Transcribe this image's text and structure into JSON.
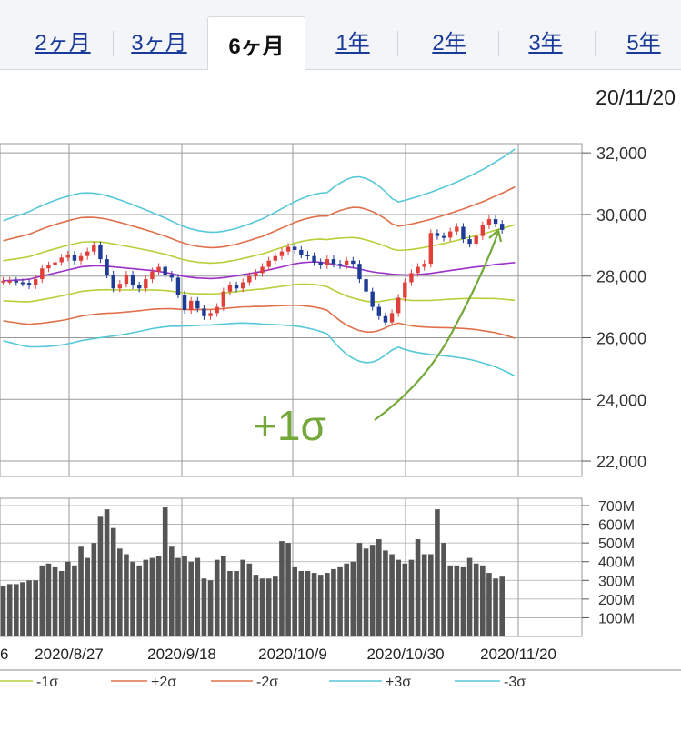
{
  "tabs": [
    {
      "label": "2ヶ月",
      "active": false
    },
    {
      "label": "3ヶ月",
      "active": false
    },
    {
      "label": "6ヶ月",
      "active": true
    },
    {
      "label": "1年",
      "active": false
    },
    {
      "label": "2年",
      "active": false
    },
    {
      "label": "3年",
      "active": false
    },
    {
      "label": "5年",
      "active": false
    }
  ],
  "date": "20/11/20",
  "annotation": "+1σ",
  "chart_data": {
    "type": "candlestick",
    "y_ticks": [
      "32,000",
      "30,000",
      "28,000",
      "26,000",
      "24,000",
      "22,000"
    ],
    "y_range": [
      21500,
      32300
    ],
    "x_ticks": [
      "6",
      "2020/8/27",
      "2020/9/18",
      "2020/10/9",
      "2020/10/30",
      "2020/11/20"
    ],
    "volume_ticks": [
      "700M",
      "600M",
      "500M",
      "400M",
      "300M",
      "200M",
      "100M"
    ],
    "volume_range": [
      0,
      700
    ],
    "legend": [
      "-1σ",
      "+2σ",
      "-2σ",
      "+3σ",
      "-3σ"
    ],
    "colors": {
      "up": "#e0403a",
      "down": "#1e3c96",
      "ma": "#9b30c8",
      "sigma1": "#b7cf3a",
      "sigma2": "#e0704a",
      "sigma3": "#56c8d8",
      "grid": "#999999",
      "volume": "#555555",
      "annotation": "#74a83a"
    },
    "close": [
      27850,
      27850,
      27800,
      27780,
      27700,
      27900,
      28250,
      28350,
      28450,
      28600,
      28700,
      28500,
      28650,
      28800,
      29000,
      28550,
      28050,
      27600,
      27750,
      28050,
      27700,
      27600,
      27900,
      28150,
      28300,
      28050,
      27950,
      27400,
      26900,
      27200,
      26950,
      26700,
      26800,
      27000,
      27500,
      27700,
      27600,
      27800,
      28000,
      28100,
      28300,
      28500,
      28650,
      28800,
      28950,
      28850,
      28700,
      28650,
      28450,
      28350,
      28550,
      28400,
      28350,
      28500,
      28400,
      27900,
      27500,
      27000,
      26700,
      26500,
      26800,
      27300,
      27800,
      28100,
      28300,
      28400,
      29400,
      29300,
      29250,
      29450,
      29600,
      29200,
      29050,
      29300,
      29650,
      29850,
      29700,
      29500,
      29350,
      29300
    ],
    "volume": [
      270,
      280,
      280,
      290,
      300,
      300,
      380,
      390,
      370,
      350,
      400,
      380,
      480,
      420,
      500,
      640,
      680,
      580,
      470,
      440,
      400,
      380,
      410,
      420,
      430,
      690,
      480,
      420,
      430,
      400,
      420,
      310,
      300,
      410,
      430,
      350,
      350,
      410,
      390,
      330,
      310,
      310,
      320,
      510,
      500,
      370,
      350,
      350,
      340,
      330,
      340,
      360,
      370,
      390,
      400,
      500,
      470,
      490,
      520,
      460,
      440,
      410,
      390,
      410,
      520,
      440,
      440,
      680,
      500,
      380,
      380,
      370,
      420,
      390,
      380,
      340,
      310,
      320,
      0,
      0
    ],
    "series_lines": {
      "sma": [
        27850,
        27860,
        27870,
        27880,
        27900,
        27950,
        28000,
        28050,
        28100,
        28150,
        28200,
        28250,
        28300,
        28320,
        28330,
        28330,
        28320,
        28300,
        28280,
        28260,
        28240,
        28220,
        28200,
        28180,
        28150,
        28120,
        28080,
        28030,
        27990,
        27960,
        27940,
        27930,
        27920,
        27930,
        27950,
        27980,
        28010,
        28050,
        28080,
        28120,
        28150,
        28200,
        28250,
        28300,
        28350,
        28400,
        28430,
        28450,
        28460,
        28450,
        28420,
        28380,
        28340,
        28300,
        28270,
        28230,
        28180,
        28140,
        28110,
        28090,
        28060,
        28050,
        28040,
        28040,
        28050,
        28070,
        28090,
        28120,
        28150,
        28180,
        28210,
        28240,
        28270,
        28300,
        28320,
        28350,
        28380,
        28400,
        28420,
        28440
      ]
    }
  },
  "axes_notes": "candles approximate; bands = SMA ± k·σ"
}
